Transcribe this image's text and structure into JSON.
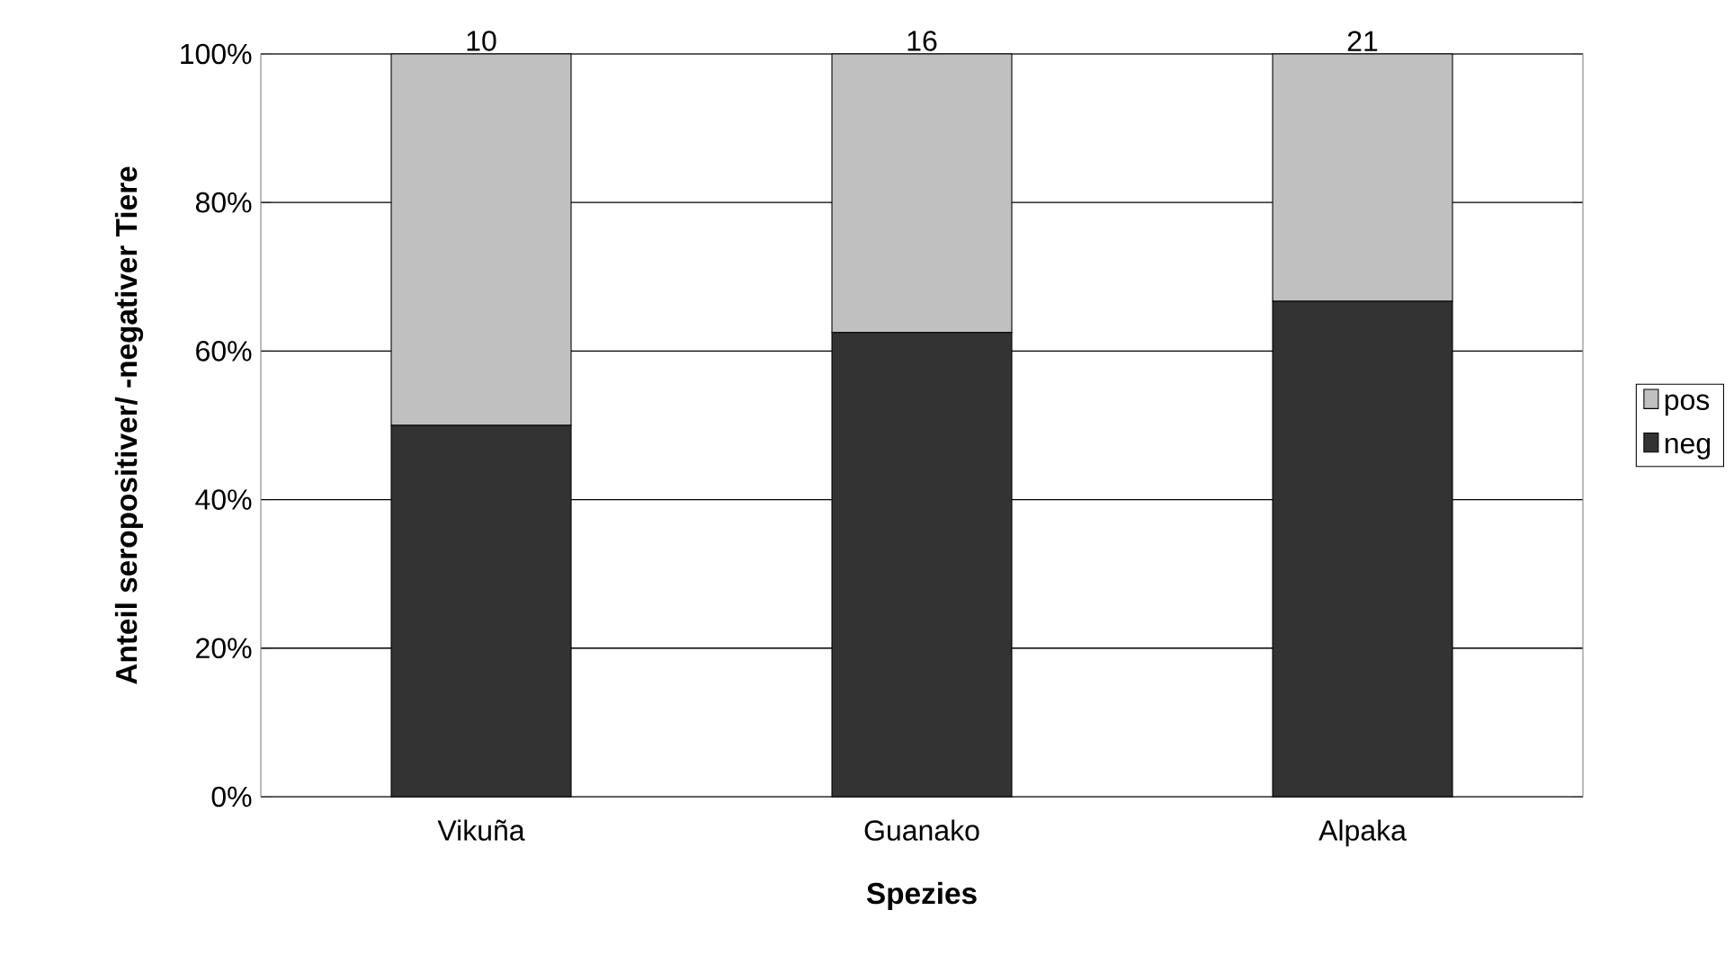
{
  "chart_data": {
    "type": "bar",
    "stacked": true,
    "xlabel": "Spezies",
    "ylabel": "Anteil seropositiver/ -negativer Tiere",
    "categories": [
      "Vikuña",
      "Guanako",
      "Alpaka"
    ],
    "series": [
      {
        "name": "neg",
        "color": "#333333",
        "values": [
          50,
          62.5,
          66.7
        ]
      },
      {
        "name": "pos",
        "color": "#c0c0c0",
        "values": [
          50,
          37.5,
          33.3
        ]
      }
    ],
    "annotations": [
      {
        "text": "10",
        "x": "Vikuña",
        "y": 100
      },
      {
        "text": "16",
        "x": "Guanako",
        "y": 100
      },
      {
        "text": "21",
        "x": "Alpaka",
        "y": 100
      }
    ],
    "ylim": [
      0,
      100
    ],
    "yticks": [
      {
        "value": 0,
        "label": "0%"
      },
      {
        "value": 20,
        "label": "20%"
      },
      {
        "value": 40,
        "label": "40%"
      },
      {
        "value": 60,
        "label": "60%"
      },
      {
        "value": 80,
        "label": "80%"
      },
      {
        "value": 100,
        "label": "100%"
      }
    ],
    "grid": "y",
    "legend": "right"
  }
}
